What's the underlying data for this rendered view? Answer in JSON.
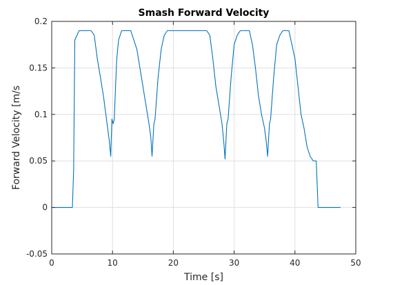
{
  "chart_data": {
    "type": "line",
    "title": "Smash Forward Velocity",
    "xlabel": "Time [s]",
    "ylabel": "Forward Velocity [m/s",
    "xlim": [
      0,
      50
    ],
    "ylim": [
      -0.05,
      0.2
    ],
    "xticks": [
      0,
      10,
      20,
      30,
      40,
      50
    ],
    "xtick_labels": [
      "0",
      "10",
      "20",
      "30",
      "40",
      "50"
    ],
    "yticks": [
      -0.05,
      0,
      0.05,
      0.1,
      0.15,
      0.2
    ],
    "ytick_labels": [
      "-0.05",
      "0",
      "0.05",
      "0.1",
      "0.15",
      "0.2"
    ],
    "grid": true,
    "series": [
      {
        "color": "#0072BD",
        "x": [
          0,
          3.4,
          3.6,
          3.8,
          4.5,
          5.5,
          6.5,
          7.0,
          7.5,
          8.0,
          8.5,
          9.0,
          9.5,
          9.7,
          9.9,
          10.1,
          10.3,
          10.5,
          10.7,
          11.0,
          11.5,
          12.0,
          13.0,
          14.0,
          14.5,
          15.0,
          15.5,
          16.0,
          16.3,
          16.5,
          16.8,
          17.0,
          17.5,
          18.0,
          18.5,
          19.0,
          20.0,
          22.0,
          24.0,
          25.5,
          26.0,
          26.5,
          27.0,
          27.5,
          28.0,
          28.3,
          28.5,
          28.8,
          29.0,
          29.5,
          30.0,
          30.5,
          31.0,
          32.5,
          33.0,
          33.5,
          34.0,
          34.5,
          35.0,
          35.3,
          35.5,
          35.8,
          36.0,
          36.5,
          37.0,
          37.5,
          38.0,
          39.0,
          39.5,
          40.0,
          40.5,
          41.0,
          41.5,
          42.0,
          42.5,
          43.0,
          43.2,
          43.5,
          43.8,
          44.0,
          45.0,
          47.5
        ],
        "y": [
          0,
          0,
          0.04,
          0.18,
          0.19,
          0.19,
          0.19,
          0.185,
          0.16,
          0.14,
          0.12,
          0.095,
          0.07,
          0.055,
          0.095,
          0.09,
          0.095,
          0.13,
          0.16,
          0.18,
          0.19,
          0.19,
          0.19,
          0.17,
          0.15,
          0.13,
          0.11,
          0.09,
          0.075,
          0.055,
          0.09,
          0.095,
          0.14,
          0.17,
          0.185,
          0.19,
          0.19,
          0.19,
          0.19,
          0.19,
          0.185,
          0.16,
          0.13,
          0.11,
          0.09,
          0.07,
          0.052,
          0.09,
          0.095,
          0.14,
          0.175,
          0.185,
          0.19,
          0.19,
          0.175,
          0.15,
          0.12,
          0.1,
          0.085,
          0.07,
          0.055,
          0.09,
          0.095,
          0.14,
          0.175,
          0.185,
          0.19,
          0.19,
          0.175,
          0.16,
          0.13,
          0.1,
          0.085,
          0.065,
          0.055,
          0.05,
          0.05,
          0.05,
          0.0,
          0,
          0,
          0
        ]
      }
    ]
  }
}
